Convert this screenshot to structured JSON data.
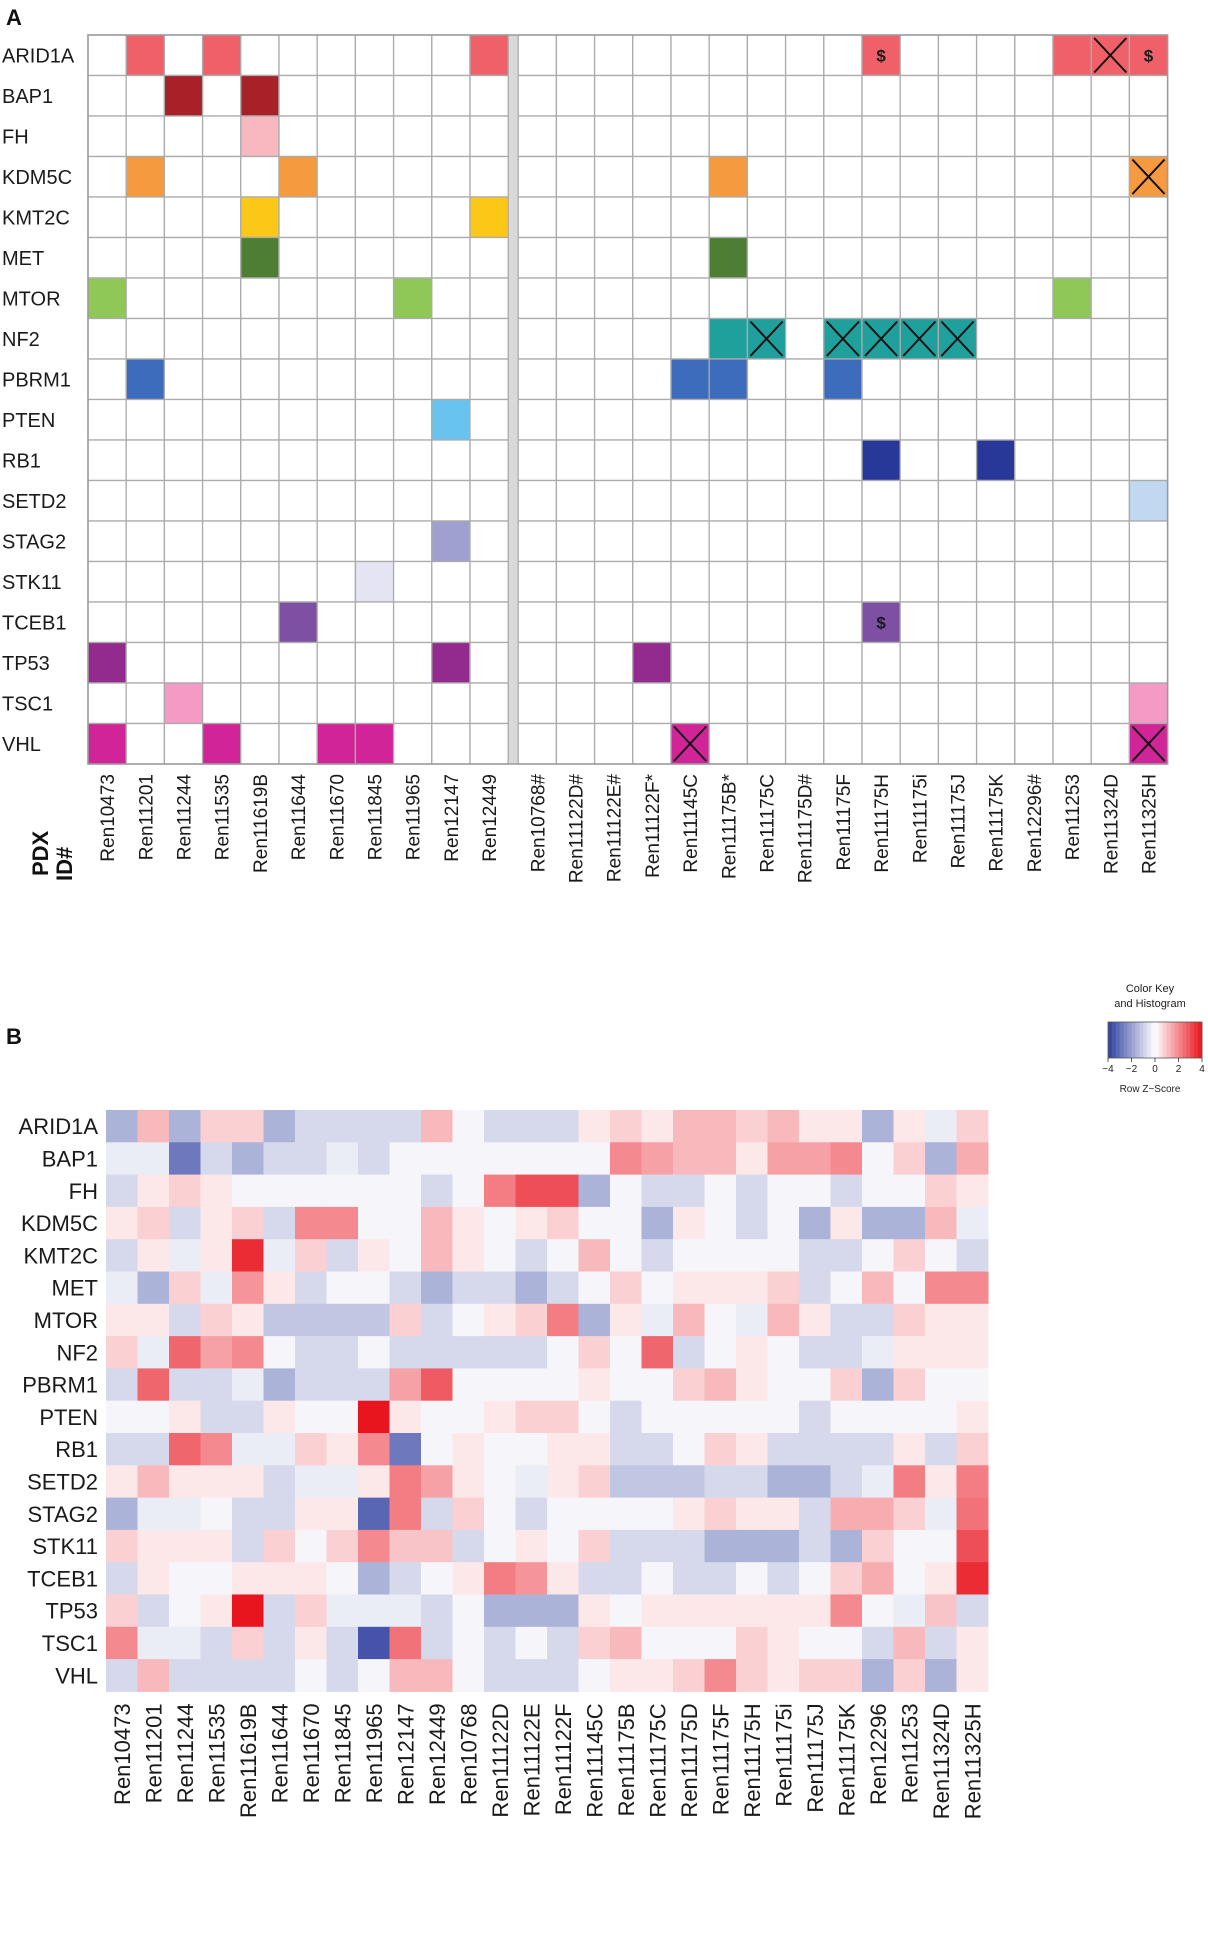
{
  "panel_a": {
    "label": "A",
    "pdx_axis_label": [
      "PDX",
      "ID#"
    ],
    "chart_data": {
      "type": "table",
      "title": "Mutation matrix",
      "genes": [
        "ARID1A",
        "BAP1",
        "FH",
        "KDM5C",
        "KMT2C",
        "MET",
        "MTOR",
        "NF2",
        "PBRM1",
        "PTEN",
        "RB1",
        "SETD2",
        "STAG2",
        "STK11",
        "TCEB1",
        "TP53",
        "TSC1",
        "VHL"
      ],
      "samples": [
        "Ren10473",
        "Ren11201",
        "Ren11244",
        "Ren11535",
        "Ren11619B",
        "Ren11644",
        "Ren11670",
        "Ren11845",
        "Ren11965",
        "Ren12147",
        "Ren12449",
        "Ren10768#",
        "Ren11122D#",
        "Ren11122E#",
        "Ren11122F*",
        "Ren11145C",
        "Ren11175B*",
        "Ren11175C",
        "Ren11175D#",
        "Ren11175F",
        "Ren11175H",
        "Ren11175i",
        "Ren11175J",
        "Ren11175K",
        "Ren12296#",
        "Ren11253",
        "Ren11324D",
        "Ren11325H"
      ],
      "separator_after_sample_index": 10,
      "gene_colors": {
        "ARID1A": "#f06068",
        "BAP1": "#a82028",
        "FH": "#f8b8c0",
        "KDM5C": "#f59a3e",
        "KMT2C": "#fcc817",
        "MET": "#4e7d34",
        "MTOR": "#90c858",
        "NF2": "#20a09c",
        "PBRM1": "#3e6cbc",
        "PTEN": "#68c4ee",
        "RB1": "#273898",
        "SETD2": "#c0d8f0",
        "STAG2": "#a0a0d0",
        "STK11": "#e4e4f2",
        "TCEB1": "#7d50a4",
        "TP53": "#932a8e",
        "TSC1": "#f49ac4",
        "VHL": "#d02498"
      },
      "cells": [
        {
          "gene": "ARID1A",
          "sample": "Ren11201"
        },
        {
          "gene": "ARID1A",
          "sample": "Ren11535"
        },
        {
          "gene": "ARID1A",
          "sample": "Ren12449"
        },
        {
          "gene": "ARID1A",
          "sample": "Ren11175H",
          "mark": "$"
        },
        {
          "gene": "ARID1A",
          "sample": "Ren11253"
        },
        {
          "gene": "ARID1A",
          "sample": "Ren11324D",
          "mark": "X"
        },
        {
          "gene": "ARID1A",
          "sample": "Ren11325H",
          "mark": "$"
        },
        {
          "gene": "BAP1",
          "sample": "Ren11244"
        },
        {
          "gene": "BAP1",
          "sample": "Ren11619B"
        },
        {
          "gene": "FH",
          "sample": "Ren11619B"
        },
        {
          "gene": "KDM5C",
          "sample": "Ren11201"
        },
        {
          "gene": "KDM5C",
          "sample": "Ren11644"
        },
        {
          "gene": "KDM5C",
          "sample": "Ren11175B*"
        },
        {
          "gene": "KDM5C",
          "sample": "Ren11325H",
          "mark": "X"
        },
        {
          "gene": "KMT2C",
          "sample": "Ren11619B"
        },
        {
          "gene": "KMT2C",
          "sample": "Ren12449"
        },
        {
          "gene": "MET",
          "sample": "Ren11619B"
        },
        {
          "gene": "MET",
          "sample": "Ren11175B*"
        },
        {
          "gene": "MTOR",
          "sample": "Ren10473"
        },
        {
          "gene": "MTOR",
          "sample": "Ren11965"
        },
        {
          "gene": "MTOR",
          "sample": "Ren11253"
        },
        {
          "gene": "NF2",
          "sample": "Ren11175B*"
        },
        {
          "gene": "NF2",
          "sample": "Ren11175C",
          "mark": "X"
        },
        {
          "gene": "NF2",
          "sample": "Ren11175F",
          "mark": "X"
        },
        {
          "gene": "NF2",
          "sample": "Ren11175H",
          "mark": "X"
        },
        {
          "gene": "NF2",
          "sample": "Ren11175i",
          "mark": "X"
        },
        {
          "gene": "NF2",
          "sample": "Ren11175J",
          "mark": "X"
        },
        {
          "gene": "PBRM1",
          "sample": "Ren11201"
        },
        {
          "gene": "PBRM1",
          "sample": "Ren11145C"
        },
        {
          "gene": "PBRM1",
          "sample": "Ren11175B*"
        },
        {
          "gene": "PBRM1",
          "sample": "Ren11175F"
        },
        {
          "gene": "PTEN",
          "sample": "Ren12147"
        },
        {
          "gene": "RB1",
          "sample": "Ren11175H"
        },
        {
          "gene": "RB1",
          "sample": "Ren11175K"
        },
        {
          "gene": "SETD2",
          "sample": "Ren11325H"
        },
        {
          "gene": "STAG2",
          "sample": "Ren12147"
        },
        {
          "gene": "STK11",
          "sample": "Ren11845"
        },
        {
          "gene": "TCEB1",
          "sample": "Ren11644"
        },
        {
          "gene": "TCEB1",
          "sample": "Ren11175H",
          "mark": "$"
        },
        {
          "gene": "TP53",
          "sample": "Ren10473"
        },
        {
          "gene": "TP53",
          "sample": "Ren12147"
        },
        {
          "gene": "TP53",
          "sample": "Ren11122F*"
        },
        {
          "gene": "TSC1",
          "sample": "Ren11244"
        },
        {
          "gene": "TSC1",
          "sample": "Ren11325H"
        },
        {
          "gene": "VHL",
          "sample": "Ren10473"
        },
        {
          "gene": "VHL",
          "sample": "Ren11535"
        },
        {
          "gene": "VHL",
          "sample": "Ren11670"
        },
        {
          "gene": "VHL",
          "sample": "Ren11845"
        },
        {
          "gene": "VHL",
          "sample": "Ren11145C",
          "mark": "X"
        },
        {
          "gene": "VHL",
          "sample": "Ren11325H",
          "mark": "X"
        }
      ]
    }
  },
  "panel_b": {
    "label": "B",
    "color_key": {
      "title_line1": "Color Key",
      "title_line2": "and Histogram",
      "tick_labels": [
        "−4",
        "−2",
        "0",
        "2",
        "4"
      ],
      "tick_values": [
        -4,
        -2,
        0,
        2,
        4
      ],
      "xlabel": "Row Z−Score",
      "low_color": "#3040a0",
      "mid_color": "#ffffff",
      "high_color": "#e8141e"
    },
    "chart_data": {
      "type": "heatmap",
      "title": "",
      "xlabel": "",
      "ylabel": "",
      "value_range": [
        -4,
        4
      ],
      "genes": [
        "ARID1A",
        "BAP1",
        "FH",
        "KDM5C",
        "KMT2C",
        "MET",
        "MTOR",
        "NF2",
        "PBRM1",
        "PTEN",
        "RB1",
        "SETD2",
        "STAG2",
        "STK11",
        "TCEB1",
        "TP53",
        "TSC1",
        "VHL"
      ],
      "samples": [
        "Ren10473",
        "Ren11201",
        "Ren11244",
        "Ren11535",
        "Ren11619B",
        "Ren11644",
        "Ren11670",
        "Ren11845",
        "Ren11965",
        "Ren12147",
        "Ren12449",
        "Ren10768",
        "Ren11122D",
        "Ren11122E",
        "Ren11122F",
        "Ren11145C",
        "Ren11175B",
        "Ren11175C",
        "Ren11175D",
        "Ren11175F",
        "Ren11175H",
        "Ren11175i",
        "Ren11175J",
        "Ren11175K",
        "Ren12296",
        "Ren11253",
        "Ren11324D",
        "Ren11325H"
      ],
      "values": [
        [
          -1.6,
          1.2,
          -1.6,
          0.8,
          0.8,
          -1.6,
          -0.8,
          -0.8,
          -0.8,
          -0.8,
          1.2,
          -0.2,
          -0.8,
          -0.8,
          -0.8,
          0.4,
          0.8,
          0.4,
          1.2,
          1.2,
          0.8,
          1.2,
          0.4,
          0.4,
          -1.6,
          0.4,
          -0.4,
          0.8
        ],
        [
          -0.4,
          -0.4,
          -2.8,
          -0.8,
          -1.6,
          -0.8,
          -0.8,
          -0.4,
          -0.8,
          -0.2,
          -0.2,
          -0.2,
          -0.2,
          -0.2,
          -0.2,
          -0.2,
          2.0,
          1.6,
          1.2,
          1.2,
          0.4,
          1.6,
          1.6,
          2.0,
          -0.2,
          0.8,
          -1.6,
          1.4
        ],
        [
          -0.8,
          0.4,
          0.8,
          0.4,
          -0.2,
          -0.2,
          -0.2,
          -0.2,
          -0.2,
          -0.2,
          -0.8,
          -0.2,
          2.2,
          3.0,
          3.0,
          -1.6,
          -0.2,
          -0.8,
          -0.8,
          -0.2,
          -0.8,
          -0.2,
          -0.2,
          -0.8,
          -0.2,
          -0.2,
          0.8,
          0.4
        ],
        [
          0.4,
          0.8,
          -0.8,
          0.4,
          0.8,
          -0.8,
          2.0,
          2.0,
          -0.2,
          -0.2,
          1.2,
          0.4,
          -0.2,
          0.4,
          0.8,
          -0.2,
          -0.2,
          -1.6,
          0.4,
          -0.2,
          -0.8,
          -0.2,
          -1.6,
          0.4,
          -1.6,
          -1.6,
          1.2,
          -0.4
        ],
        [
          -0.8,
          0.4,
          -0.4,
          0.4,
          3.6,
          -0.4,
          0.8,
          -0.8,
          0.4,
          -0.2,
          1.2,
          0.4,
          -0.2,
          -0.8,
          -0.2,
          1.2,
          -0.2,
          -0.8,
          -0.2,
          -0.2,
          -0.2,
          -0.2,
          -0.8,
          -0.8,
          -0.2,
          0.8,
          -0.2,
          -0.8
        ],
        [
          -0.4,
          -1.6,
          0.8,
          -0.4,
          1.8,
          0.4,
          -0.8,
          -0.2,
          -0.2,
          -0.8,
          -1.6,
          -0.8,
          -0.8,
          -1.6,
          -0.8,
          -0.2,
          0.8,
          -0.2,
          0.4,
          0.4,
          0.4,
          0.8,
          -0.8,
          -0.2,
          1.2,
          -0.2,
          2.0,
          2.0
        ],
        [
          0.4,
          0.4,
          -0.8,
          0.8,
          0.4,
          -1.2,
          -1.2,
          -1.2,
          -1.2,
          0.8,
          -0.8,
          -0.2,
          0.4,
          0.8,
          2.2,
          -1.6,
          0.4,
          -0.4,
          1.2,
          -0.2,
          -0.4,
          1.2,
          0.4,
          -0.8,
          -0.8,
          0.8,
          0.4,
          0.4
        ],
        [
          0.8,
          -0.4,
          2.6,
          1.6,
          2.0,
          -0.2,
          -0.8,
          -0.8,
          -0.2,
          -0.8,
          -0.8,
          -0.8,
          -0.8,
          -0.8,
          -0.2,
          0.8,
          -0.2,
          2.6,
          -0.8,
          -0.2,
          0.4,
          -0.2,
          -0.8,
          -0.8,
          -0.4,
          0.4,
          0.4,
          0.4
        ],
        [
          -0.8,
          2.6,
          -0.8,
          -0.8,
          -0.4,
          -1.6,
          -0.8,
          -0.8,
          -0.8,
          1.6,
          2.8,
          -0.2,
          -0.2,
          -0.2,
          -0.2,
          0.4,
          -0.2,
          -0.2,
          0.8,
          1.2,
          0.4,
          -0.2,
          -0.2,
          0.8,
          -1.6,
          0.8,
          -0.2,
          -0.2
        ],
        [
          -0.2,
          -0.2,
          0.4,
          -0.8,
          -0.8,
          0.4,
          -0.2,
          -0.2,
          4.0,
          0.4,
          -0.2,
          -0.2,
          0.4,
          0.8,
          0.8,
          -0.2,
          -0.8,
          -0.2,
          -0.2,
          -0.2,
          -0.2,
          -0.2,
          -0.8,
          -0.2,
          -0.2,
          -0.2,
          -0.2,
          0.4
        ],
        [
          -0.8,
          -0.8,
          2.6,
          2.0,
          -0.4,
          -0.4,
          0.8,
          0.4,
          2.0,
          -2.8,
          -0.2,
          0.4,
          -0.2,
          -0.2,
          0.4,
          0.4,
          -0.8,
          -0.8,
          -0.2,
          0.8,
          0.4,
          -0.8,
          -0.8,
          -0.8,
          -0.8,
          0.4,
          -0.8,
          0.8
        ],
        [
          0.4,
          1.2,
          0.4,
          0.4,
          0.4,
          -0.8,
          -0.4,
          -0.4,
          0.4,
          2.2,
          1.6,
          0.4,
          -0.2,
          -0.4,
          0.4,
          0.8,
          -1.2,
          -1.2,
          -1.2,
          -0.8,
          -0.8,
          -1.6,
          -1.6,
          -0.8,
          -0.4,
          2.2,
          0.4,
          2.2
        ],
        [
          -1.6,
          -0.4,
          -0.4,
          -0.2,
          -0.8,
          -0.8,
          0.4,
          0.4,
          -3.2,
          2.2,
          -0.8,
          0.8,
          -0.2,
          -0.8,
          -0.2,
          -0.2,
          -0.2,
          -0.2,
          0.4,
          0.8,
          0.4,
          0.4,
          -0.8,
          1.4,
          1.4,
          0.8,
          -0.4,
          2.4
        ],
        [
          0.8,
          0.4,
          0.4,
          0.4,
          -0.8,
          0.8,
          -0.2,
          0.8,
          2.0,
          1.0,
          1.0,
          -0.8,
          -0.2,
          0.4,
          -0.2,
          0.8,
          -0.8,
          -0.8,
          -0.8,
          -1.6,
          -1.6,
          -1.6,
          -0.8,
          -1.6,
          0.8,
          -0.2,
          -0.2,
          3.0
        ],
        [
          -0.8,
          0.4,
          -0.2,
          -0.2,
          0.4,
          0.4,
          0.4,
          -0.2,
          -1.6,
          -0.8,
          -0.2,
          0.4,
          2.2,
          1.8,
          0.4,
          -0.8,
          -0.8,
          -0.2,
          -0.8,
          -0.8,
          -0.2,
          -0.8,
          -0.2,
          0.8,
          1.4,
          -0.2,
          0.4,
          3.6
        ],
        [
          0.8,
          -0.8,
          -0.2,
          0.4,
          4.0,
          -0.8,
          0.8,
          -0.4,
          -0.4,
          -0.4,
          -0.8,
          -0.2,
          -1.6,
          -1.6,
          -1.6,
          0.4,
          -0.2,
          0.4,
          0.4,
          0.4,
          0.4,
          0.4,
          0.4,
          2.0,
          -0.2,
          -0.4,
          1.0,
          -0.8
        ],
        [
          2.0,
          -0.4,
          -0.4,
          -0.8,
          0.8,
          -0.8,
          0.4,
          -0.8,
          -3.6,
          2.4,
          -0.8,
          -0.2,
          -0.8,
          -0.2,
          -0.8,
          0.8,
          1.2,
          -0.2,
          -0.2,
          -0.2,
          0.8,
          0.4,
          -0.2,
          -0.2,
          -0.8,
          1.2,
          -0.8,
          0.4
        ],
        [
          -0.8,
          1.2,
          -0.8,
          -0.8,
          -0.8,
          -0.8,
          -0.2,
          -0.8,
          -0.2,
          1.2,
          1.2,
          -0.2,
          -0.8,
          -0.8,
          -0.8,
          -0.2,
          0.4,
          0.4,
          0.8,
          2.0,
          0.8,
          0.4,
          0.8,
          0.8,
          -1.6,
          0.8,
          -1.6,
          0.4
        ]
      ]
    }
  }
}
